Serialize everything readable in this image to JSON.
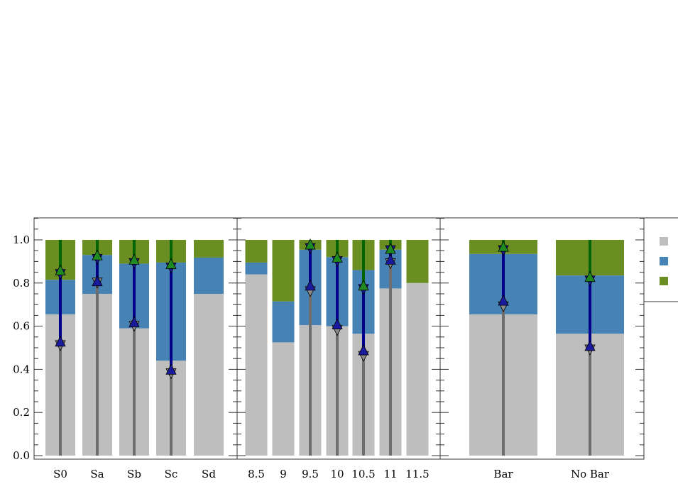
{
  "colors": {
    "gray": "#bebebe",
    "blue": "#4682b4",
    "green": "#6b8e23",
    "dark_gray_err": "#6e6e6e",
    "blue_err": "#00008b",
    "green_err": "#006400"
  },
  "chart_data": {
    "type": "bar",
    "stacked": true,
    "ylim": [
      0,
      1.1
    ],
    "yticks": [
      0.0,
      0.2,
      0.4,
      0.6,
      0.8,
      1.0
    ],
    "ytick_labels": [
      "0.0",
      "0.2",
      "0.4",
      "0.6",
      "0.8",
      "1.0"
    ],
    "grid": false,
    "panels": [
      {
        "categories": [
          "S0",
          "Sa",
          "Sb",
          "Sc",
          "Sd"
        ],
        "series": [
          {
            "color": "gray",
            "values": [
              0.655,
              0.75,
              0.59,
              0.44,
              0.75
            ]
          },
          {
            "color": "blue",
            "values": [
              0.16,
              0.18,
              0.3,
              0.455,
              0.168
            ]
          },
          {
            "color": "green",
            "values": [
              0.185,
              0.07,
              0.11,
              0.105,
              0.082
            ]
          }
        ],
        "errors": [
          {
            "gray": [
              0,
              0.51
            ],
            "blue": [
              0.53,
              0.84
            ],
            "green": [
              0.86,
              1.0
            ]
          },
          {
            "gray": [
              0,
              0.8
            ],
            "blue": [
              0.81,
              0.91
            ],
            "green": [
              0.93,
              1.0
            ]
          },
          {
            "gray": [
              0,
              0.6
            ],
            "blue": [
              0.62,
              0.89
            ],
            "green": [
              0.91,
              1.0
            ]
          },
          {
            "gray": [
              0,
              0.38
            ],
            "blue": [
              0.4,
              0.87
            ],
            "green": [
              0.89,
              1.0
            ]
          },
          null
        ]
      },
      {
        "categories": [
          "8.5",
          "9",
          "9.5",
          "10",
          "10.5",
          "11",
          "11.5"
        ],
        "series": [
          {
            "color": "gray",
            "values": [
              0.84,
              0.525,
              0.605,
              0.6,
              0.565,
              0.775,
              0.8
            ]
          },
          {
            "color": "blue",
            "values": [
              0.055,
              0.19,
              0.35,
              0.32,
              0.295,
              0.18,
              0.0
            ]
          },
          {
            "color": "green",
            "values": [
              0.105,
              0.285,
              0.045,
              0.08,
              0.14,
              0.045,
              0.2
            ]
          }
        ],
        "errors": [
          null,
          null,
          {
            "gray": [
              0,
              0.76
            ],
            "blue": [
              0.79,
              0.96
            ],
            "green": [
              0.98,
              1.0
            ]
          },
          {
            "gray": [
              0,
              0.58
            ],
            "blue": [
              0.61,
              0.9
            ],
            "green": [
              0.92,
              1.0
            ]
          },
          {
            "gray": [
              0,
              0.46
            ],
            "blue": [
              0.49,
              0.77
            ],
            "green": [
              0.79,
              1.0
            ]
          },
          {
            "gray": [
              0,
              0.89
            ],
            "blue": [
              0.91,
              0.95
            ],
            "green": [
              0.96,
              1.0
            ]
          },
          null
        ]
      },
      {
        "categories": [
          "Bar",
          "No Bar"
        ],
        "series": [
          {
            "color": "gray",
            "values": [
              0.655,
              0.565
            ]
          },
          {
            "color": "blue",
            "values": [
              0.28,
              0.27
            ]
          },
          {
            "color": "green",
            "values": [
              0.065,
              0.165
            ]
          }
        ],
        "errors": [
          {
            "gray": [
              0,
              0.69
            ],
            "blue": [
              0.72,
              0.95
            ],
            "green": [
              0.97,
              1.0
            ]
          },
          {
            "gray": [
              0,
              0.49
            ],
            "blue": [
              0.51,
              0.81
            ],
            "green": [
              0.83,
              1.0
            ]
          }
        ]
      }
    ],
    "legend": {
      "placement": "right",
      "entries": [
        {
          "color": "gray",
          "label": ""
        },
        {
          "color": "blue",
          "label": ""
        },
        {
          "color": "green",
          "label": ""
        }
      ]
    }
  }
}
